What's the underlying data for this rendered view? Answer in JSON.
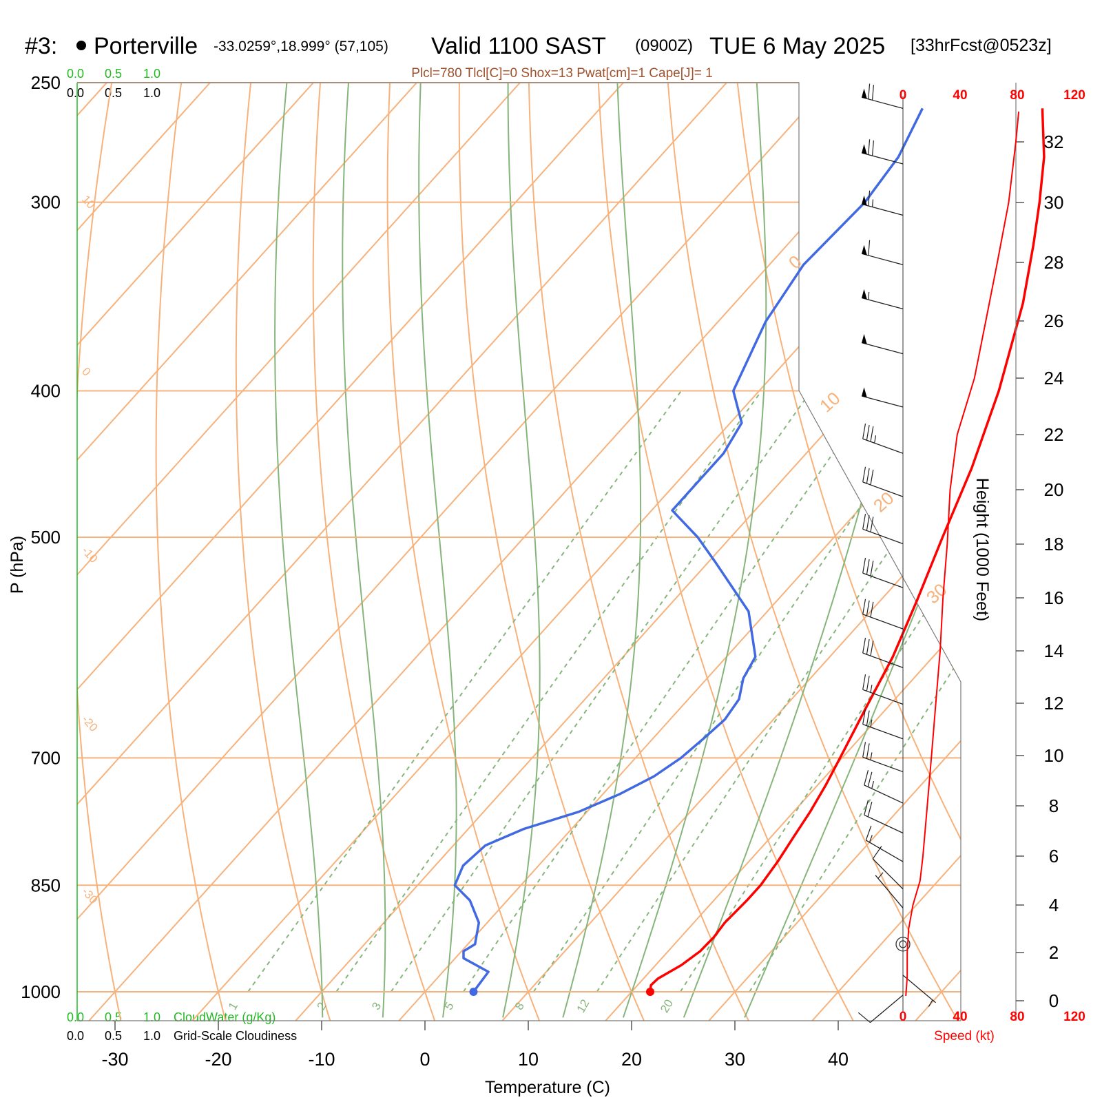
{
  "header": {
    "station_number": "#3:",
    "station_name": "Porterville",
    "coords": "-33.0259°,18.999° (57,105)",
    "valid": "Valid 1100 SAST",
    "utc": "(0900Z)",
    "date": "TUE 6 May 2025",
    "forecast": "[33hrFcst@0523z]"
  },
  "params_line": "Plcl=780 Tlcl[C]=0 Shox=13 Pwat[cm]=1 Cape[J]= 1",
  "cloud_scale": {
    "ticks": [
      "0.0",
      "0.5",
      "1.0"
    ],
    "cloudwater_label": "CloudWater (g/Kg)",
    "cloudiness_label": "Grid-Scale Cloudiness"
  },
  "axes": {
    "x_label": "Temperature (C)",
    "y_label": "P (hPa)",
    "height_label": "Height (1000 Feet)",
    "speed_label": "Speed (kt)"
  },
  "colors": {
    "isotherm": "#f7b27c",
    "dry_adiabat": "#f7b27c",
    "moist_adiabat": "#86b57c",
    "mixing_ratio": "#86b57c",
    "temperature": "#ff0000",
    "dewpoint": "#4169e1",
    "cloud_green": "#22bb22",
    "params": "#a0522d"
  },
  "chart_data": {
    "type": "line",
    "diagram": "skew-T log-P",
    "x_axis": {
      "label": "Temperature (C)",
      "ticks": [
        -30,
        -20,
        -10,
        0,
        10,
        20,
        30,
        40
      ]
    },
    "y_axis": {
      "label": "P (hPa)",
      "scale": "log",
      "ticks": [
        250,
        300,
        400,
        500,
        700,
        850,
        1000
      ],
      "range": [
        1030,
        250
      ]
    },
    "isotherm_labels": [
      -30,
      -20,
      -10,
      0,
      10,
      20,
      30
    ],
    "mixing_ratio_labels": [
      "1",
      "2",
      "3",
      "5",
      "8",
      "12",
      "20"
    ],
    "series": [
      {
        "name": "temperature",
        "p": [
          1000,
          990,
          980,
          960,
          940,
          920,
          900,
          870,
          850,
          820,
          790,
          760,
          730,
          700,
          650,
          600,
          550,
          500,
          450,
          400,
          350,
          320,
          300,
          280,
          260
        ],
        "t": [
          21.8,
          21.3,
          21.4,
          22.5,
          23.1,
          23.2,
          23.0,
          23.2,
          23.2,
          22.8,
          22.2,
          21.6,
          20.8,
          19.8,
          18.0,
          16.1,
          13.5,
          10.5,
          7.3,
          3.2,
          -2.1,
          -6.2,
          -9.3,
          -12.8,
          -17.2
        ]
      },
      {
        "name": "dewpoint",
        "p": [
          1000,
          990,
          970,
          950,
          940,
          930,
          920,
          900,
          870,
          850,
          825,
          800,
          780,
          760,
          740,
          720,
          700,
          680,
          660,
          640,
          620,
          600,
          560,
          520,
          500,
          480,
          440,
          420,
          400,
          360,
          330,
          300,
          280,
          260
        ],
        "t": [
          4.7,
          4.6,
          4.4,
          0.8,
          0.2,
          0.7,
          0.2,
          -0.8,
          -3.6,
          -6.4,
          -7.3,
          -6.9,
          -4.6,
          -0.8,
          1.6,
          3.4,
          4.4,
          4.9,
          5.3,
          4.9,
          3.5,
          2.8,
          -1.8,
          -9.2,
          -13.2,
          -18.0,
          -18.0,
          -18.9,
          -22.5,
          -25.4,
          -26.7,
          -26.2,
          -26.9,
          -28.8
        ]
      },
      {
        "name": "wind speed",
        "unit": "kt",
        "height_kft": [
          0.2,
          1.0,
          2.0,
          3.0,
          4.0,
          5.0,
          6.0,
          8.0,
          10.0,
          12.0,
          14.0,
          16.0,
          18.0,
          20.0,
          22.0,
          24.0,
          26.0,
          28.0,
          30.0,
          32.0,
          33.0
        ],
        "speed": [
          2,
          3,
          3,
          4,
          7,
          12,
          14,
          17,
          20,
          23,
          26,
          28,
          31,
          33,
          38,
          50,
          58,
          66,
          74,
          79,
          81
        ]
      }
    ],
    "wind_barbs": [
      {
        "p": 260,
        "dir": 285,
        "spd": 70
      },
      {
        "p": 283,
        "dir": 285,
        "spd": 70
      },
      {
        "p": 306,
        "dir": 285,
        "spd": 65
      },
      {
        "p": 330,
        "dir": 285,
        "spd": 60
      },
      {
        "p": 353,
        "dir": 285,
        "spd": 55
      },
      {
        "p": 378,
        "dir": 285,
        "spd": 50
      },
      {
        "p": 410,
        "dir": 285,
        "spd": 50
      },
      {
        "p": 440,
        "dir": 290,
        "spd": 35
      },
      {
        "p": 470,
        "dir": 290,
        "spd": 30
      },
      {
        "p": 505,
        "dir": 290,
        "spd": 30
      },
      {
        "p": 540,
        "dir": 290,
        "spd": 30
      },
      {
        "p": 575,
        "dir": 290,
        "spd": 30
      },
      {
        "p": 610,
        "dir": 290,
        "spd": 30
      },
      {
        "p": 645,
        "dir": 290,
        "spd": 25
      },
      {
        "p": 680,
        "dir": 290,
        "spd": 25
      },
      {
        "p": 715,
        "dir": 290,
        "spd": 25
      },
      {
        "p": 750,
        "dir": 295,
        "spd": 25
      },
      {
        "p": 785,
        "dir": 295,
        "spd": 20
      },
      {
        "p": 820,
        "dir": 300,
        "spd": 15
      },
      {
        "p": 855,
        "dir": 315,
        "spd": 10
      },
      {
        "p": 880,
        "dir": 320,
        "spd": 5
      },
      {
        "p": 930,
        "dir": 0,
        "spd": 0
      },
      {
        "p": 975,
        "dir": 130,
        "spd": 5
      },
      {
        "p": 1005,
        "dir": 230,
        "spd": 10
      }
    ],
    "height_axis": {
      "label": "Height (1000 Feet)",
      "ticks": [
        0,
        2,
        4,
        6,
        8,
        10,
        12,
        14,
        16,
        18,
        20,
        22,
        24,
        26,
        28,
        30,
        32
      ]
    },
    "speed_axis": {
      "label": "Speed (kt)",
      "ticks": [
        0,
        40,
        80,
        120
      ]
    }
  }
}
